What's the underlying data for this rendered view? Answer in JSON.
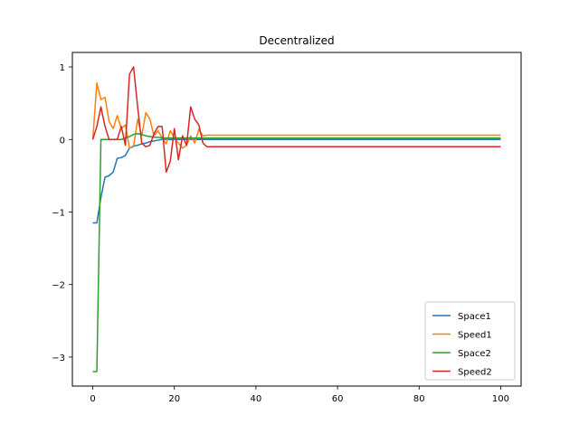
{
  "chart_data": {
    "type": "line",
    "title": "Decentralized",
    "xlabel": "",
    "ylabel": "",
    "xlim": [
      -5,
      105
    ],
    "ylim": [
      -3.4,
      1.2
    ],
    "x_ticks": [
      0,
      20,
      40,
      60,
      80,
      100
    ],
    "y_ticks": [
      1,
      0,
      -1,
      -2,
      -3
    ],
    "y_tick_labels": [
      "1",
      "0",
      "−1",
      "−2",
      "−3"
    ],
    "grid": false,
    "legend_position": "lower right",
    "series": [
      {
        "name": "Space1",
        "color": "#1f77b4",
        "x": [
          0,
          1,
          2,
          3,
          4,
          5,
          6,
          7,
          8,
          9,
          10,
          11,
          12,
          13,
          14,
          15,
          16,
          17,
          18,
          19,
          20,
          21,
          22,
          23,
          24,
          25,
          26,
          27,
          28,
          100
        ],
        "y": [
          -1.15,
          -1.15,
          -0.8,
          -0.52,
          -0.5,
          -0.45,
          -0.26,
          -0.25,
          -0.22,
          -0.12,
          -0.09,
          -0.08,
          -0.06,
          -0.05,
          -0.03,
          -0.02,
          -0.01,
          0,
          0,
          0,
          0,
          0,
          0,
          0,
          0,
          0,
          0,
          0,
          0,
          0
        ]
      },
      {
        "name": "Speed1",
        "color": "#ff7f0e",
        "x": [
          0,
          1,
          2,
          3,
          4,
          5,
          6,
          7,
          8,
          9,
          10,
          11,
          12,
          13,
          14,
          15,
          16,
          17,
          18,
          19,
          20,
          21,
          22,
          23,
          24,
          25,
          26,
          27,
          28,
          100
        ],
        "y": [
          0,
          0.78,
          0.55,
          0.58,
          0.25,
          0.15,
          0.33,
          0.15,
          0.2,
          -0.12,
          -0.1,
          0.28,
          0.05,
          0.37,
          0.28,
          0.05,
          0.12,
          0.02,
          -0.06,
          0.12,
          0.02,
          -0.05,
          -0.12,
          -0.08,
          0.05,
          -0.05,
          0.14,
          0.05,
          0.06,
          0.06
        ]
      },
      {
        "name": "Space2",
        "color": "#2ca02c",
        "x": [
          0,
          1,
          2,
          3,
          4,
          5,
          6,
          7,
          8,
          9,
          10,
          11,
          12,
          13,
          14,
          15,
          16,
          17,
          18,
          19,
          20,
          21,
          22,
          23,
          24,
          25,
          26,
          27,
          28,
          100
        ],
        "y": [
          -3.2,
          -3.2,
          0,
          0,
          0,
          0,
          0,
          0,
          0.02,
          0.04,
          0.07,
          0.08,
          0.07,
          0.05,
          0.04,
          0.03,
          0.03,
          0.02,
          0.02,
          0.02,
          0.02,
          0.02,
          0.02,
          0.02,
          0.02,
          0.02,
          0.02,
          0.02,
          0.02,
          0.02
        ]
      },
      {
        "name": "Speed2",
        "color": "#d62728",
        "x": [
          0,
          1,
          2,
          3,
          4,
          5,
          6,
          7,
          8,
          9,
          10,
          11,
          12,
          13,
          14,
          15,
          16,
          17,
          18,
          19,
          20,
          21,
          22,
          23,
          24,
          25,
          26,
          27,
          28,
          100
        ],
        "y": [
          0,
          0.18,
          0.45,
          0.18,
          0,
          0,
          0,
          0.18,
          -0.08,
          0.9,
          1.0,
          0.45,
          -0.05,
          -0.1,
          -0.08,
          0.08,
          0.18,
          0.18,
          -0.45,
          -0.3,
          0.15,
          -0.28,
          0.05,
          -0.08,
          0.45,
          0.28,
          0.2,
          -0.05,
          -0.1,
          -0.1
        ]
      }
    ]
  }
}
